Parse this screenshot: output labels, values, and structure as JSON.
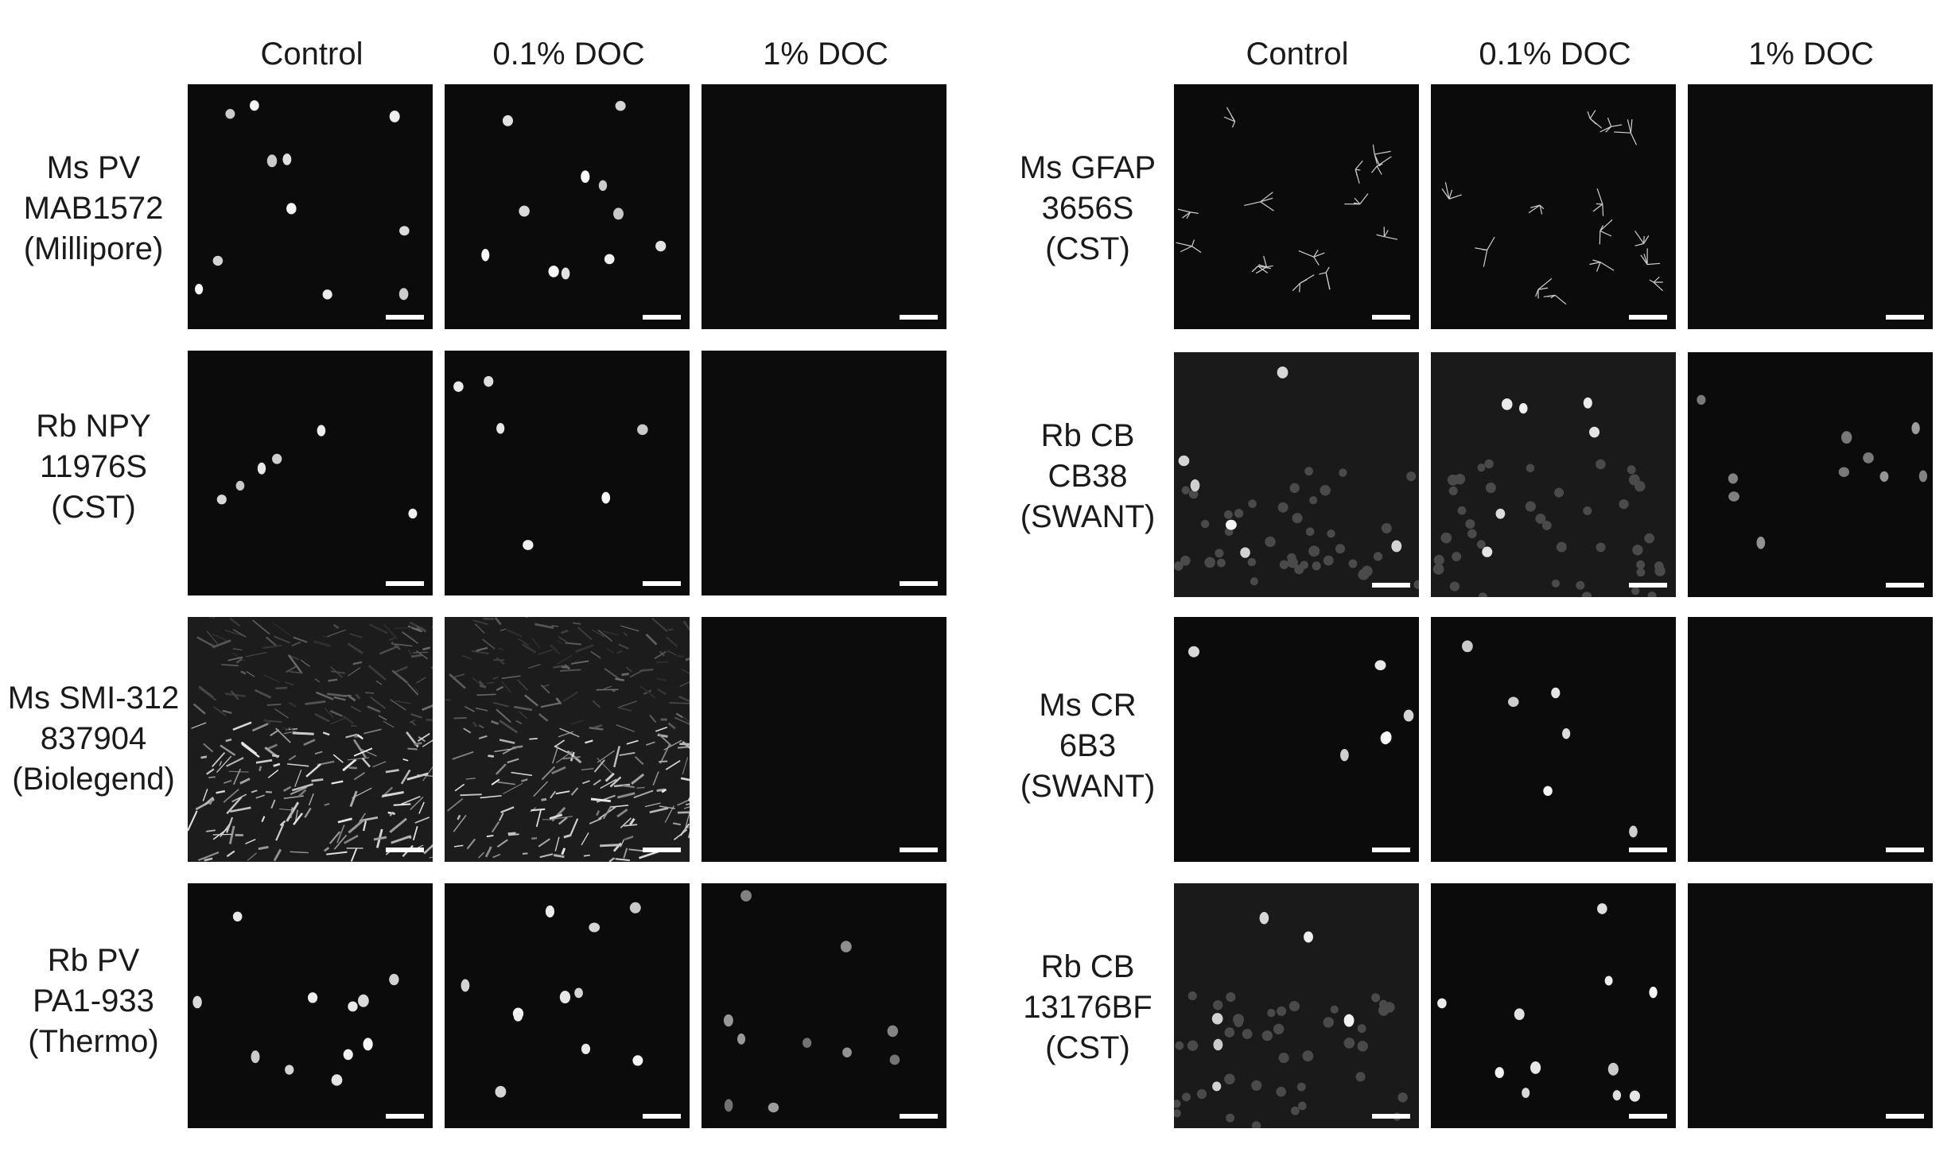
{
  "panels": [
    {
      "columns": [
        "Control",
        "0.1% DOC",
        "1% DOC"
      ],
      "rows": [
        {
          "lines": [
            "Ms PV",
            "MAB1572",
            "(Millipore)"
          ]
        },
        {
          "lines": [
            "Rb NPY",
            "11976S",
            "(CST)"
          ]
        },
        {
          "lines": [
            "Ms SMI-312",
            "837904",
            "(Biolegend)"
          ]
        },
        {
          "lines": [
            "Rb PV",
            "PA1-933",
            "(Thermo)"
          ]
        }
      ]
    },
    {
      "columns": [
        "Control",
        "0.1% DOC",
        "1% DOC"
      ],
      "rows": [
        {
          "lines": [
            "Ms GFAP",
            "3656S",
            "(CST)"
          ]
        },
        {
          "lines": [
            "Rb CB",
            "CB38",
            "(SWANT)"
          ]
        },
        {
          "lines": [
            "Ms CR",
            "6B3",
            "(SWANT)"
          ]
        },
        {
          "lines": [
            "Rb CB",
            "13176BF",
            "(CST)"
          ]
        }
      ]
    }
  ],
  "colors": {
    "background": "#ffffff",
    "image_background": "#0b0b0b",
    "signal": "#e6e6e6",
    "scale_bar": "#ffffff"
  }
}
